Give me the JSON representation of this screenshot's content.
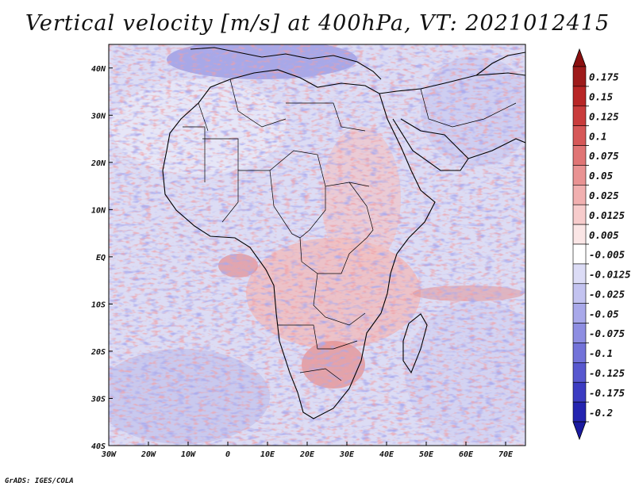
{
  "title": "Vertical velocity [m/s] at 400hPa, VT: 2021012415",
  "credit": "GrADS: IGES/COLA",
  "map": {
    "variable": "Vertical velocity",
    "units": "m/s",
    "level": "400hPa",
    "valid_time": "2021012415",
    "lon_range": [
      -30,
      75
    ],
    "lat_range": [
      -40,
      45
    ],
    "lon_ticks": [
      {
        "value": -30,
        "label": "30W"
      },
      {
        "value": -20,
        "label": "20W"
      },
      {
        "value": -10,
        "label": "10W"
      },
      {
        "value": 0,
        "label": "0"
      },
      {
        "value": 10,
        "label": "10E"
      },
      {
        "value": 20,
        "label": "20E"
      },
      {
        "value": 30,
        "label": "30E"
      },
      {
        "value": 40,
        "label": "40E"
      },
      {
        "value": 50,
        "label": "50E"
      },
      {
        "value": 60,
        "label": "60E"
      },
      {
        "value": 70,
        "label": "70E"
      }
    ],
    "lat_ticks": [
      {
        "value": 40,
        "label": "40N"
      },
      {
        "value": 30,
        "label": "30N"
      },
      {
        "value": 20,
        "label": "20N"
      },
      {
        "value": 10,
        "label": "10N"
      },
      {
        "value": 0,
        "label": "EQ"
      },
      {
        "value": -10,
        "label": "10S"
      },
      {
        "value": -20,
        "label": "20S"
      },
      {
        "value": -30,
        "label": "30S"
      },
      {
        "value": -40,
        "label": "40S"
      }
    ]
  },
  "colorbar": {
    "levels": [
      {
        "label": "0.175",
        "color": "#9e1b1b"
      },
      {
        "label": "0.15",
        "color": "#b82626"
      },
      {
        "label": "0.125",
        "color": "#c93c3c"
      },
      {
        "label": "0.1",
        "color": "#d65858"
      },
      {
        "label": "0.075",
        "color": "#e07575"
      },
      {
        "label": "0.05",
        "color": "#e99393"
      },
      {
        "label": "0.025",
        "color": "#f1b0b0"
      },
      {
        "label": "0.0125",
        "color": "#f7cccc"
      },
      {
        "label": "0.005",
        "color": "#fbe6e6"
      },
      {
        "label": "-0.005",
        "color": "#ffffff"
      },
      {
        "label": "-0.0125",
        "color": "#dcdcf6"
      },
      {
        "label": "-0.025",
        "color": "#c3c3f0"
      },
      {
        "label": "-0.05",
        "color": "#a9a9ea"
      },
      {
        "label": "-0.075",
        "color": "#8e8ee2"
      },
      {
        "label": "-0.1",
        "color": "#7373d9"
      },
      {
        "label": "-0.125",
        "color": "#5858cf"
      },
      {
        "label": "-0.175",
        "color": "#3c3cc2"
      },
      {
        "label": "-0.2",
        "color": "#2424b0"
      }
    ],
    "top_arrow_color": "#8a1010",
    "bottom_arrow_color": "#1a1aa0"
  }
}
